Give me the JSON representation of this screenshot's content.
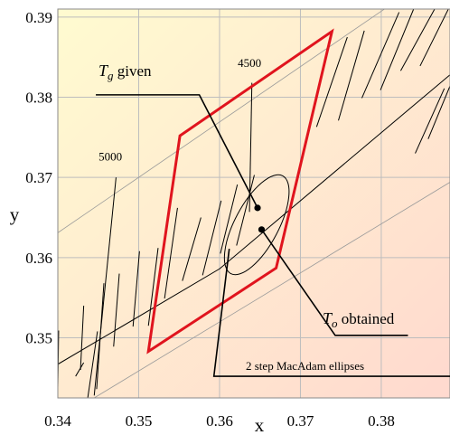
{
  "chart_data": {
    "type": "line",
    "xlabel": "x",
    "ylabel": "y",
    "xlim": [
      0.34,
      0.3885
    ],
    "ylim": [
      0.3425,
      0.391
    ],
    "x_ticks": [
      {
        "value": 0.34,
        "label": "0.34"
      },
      {
        "value": 0.35,
        "label": "0.35"
      },
      {
        "value": 0.36,
        "label": "0.36"
      },
      {
        "value": 0.37,
        "label": "0.37"
      },
      {
        "value": 0.38,
        "label": "0.38"
      }
    ],
    "y_ticks": [
      {
        "value": 0.35,
        "label": "0.35"
      },
      {
        "value": 0.36,
        "label": "0.36"
      },
      {
        "value": 0.37,
        "label": "0.37"
      },
      {
        "value": 0.38,
        "label": "0.38"
      },
      {
        "value": 0.39,
        "label": "0.39"
      }
    ],
    "grid": true,
    "background": {
      "from": "#fffbd0",
      "to": "#ffd9cf"
    },
    "colors": {
      "boundary": "#e0141e",
      "lines": "#000000",
      "grid": "#bdbdbd"
    },
    "locus": [
      [
        0.34,
        0.3467
      ],
      [
        0.36,
        0.3586
      ],
      [
        0.3885,
        0.3828
      ]
    ],
    "boundary_lines": [
      [
        [
          0.34,
          0.3631
        ],
        [
          0.3885,
          0.3966
        ]
      ],
      [
        [
          0.3445,
          0.3425
        ],
        [
          0.3885,
          0.3694
        ]
      ]
    ],
    "isotherms": [
      [
        [
          0.34,
          0.3438
        ],
        [
          0.3401,
          0.3509
        ]
      ],
      [
        [
          0.3428,
          0.346
        ],
        [
          0.3432,
          0.354
        ]
      ],
      [
        [
          0.3448,
          0.3436
        ],
        [
          0.3457,
          0.3568
        ]
      ],
      [
        [
          0.3469,
          0.3489
        ],
        [
          0.3476,
          0.358
        ]
      ],
      [
        [
          0.3493,
          0.3514
        ],
        [
          0.3501,
          0.3608
        ]
      ],
      [
        [
          0.3512,
          0.3515
        ],
        [
          0.3524,
          0.3612
        ]
      ],
      [
        [
          0.3532,
          0.3549
        ],
        [
          0.3548,
          0.3662
        ]
      ],
      [
        [
          0.3554,
          0.3571
        ],
        [
          0.3577,
          0.365
        ]
      ],
      [
        [
          0.3579,
          0.3578
        ],
        [
          0.3602,
          0.3671
        ]
      ],
      [
        [
          0.3601,
          0.3605
        ],
        [
          0.3622,
          0.3691
        ]
      ],
      [
        [
          0.3621,
          0.3615
        ],
        [
          0.3643,
          0.3703
        ]
      ],
      [
        [
          0.372,
          0.3763
        ],
        [
          0.3758,
          0.3875
        ]
      ],
      [
        [
          0.3747,
          0.3771
        ],
        [
          0.3779,
          0.3883
        ]
      ],
      [
        [
          0.3776,
          0.3799
        ],
        [
          0.3822,
          0.3906
        ]
      ],
      [
        [
          0.3799,
          0.3809
        ],
        [
          0.384,
          0.391
        ]
      ],
      [
        [
          0.3824,
          0.3833
        ],
        [
          0.3866,
          0.391
        ]
      ],
      [
        [
          0.3848,
          0.3839
        ],
        [
          0.3883,
          0.391
        ]
      ],
      [
        [
          0.3842,
          0.373
        ],
        [
          0.3878,
          0.3811
        ]
      ],
      [
        [
          0.3858,
          0.3748
        ],
        [
          0.3885,
          0.3814
        ]
      ],
      [
        [
          0.3437,
          0.3425
        ],
        [
          0.3449,
          0.3508
        ]
      ],
      [
        [
          0.3388,
          0.3509
        ],
        [
          0.3388,
          0.3524
        ]
      ],
      [
        [
          0.3422,
          0.3452
        ],
        [
          0.3432,
          0.3469
        ]
      ]
    ],
    "isotherm_labels": [
      {
        "text": "5000",
        "at": [
          0.3465,
          0.3721
        ],
        "line": [
          [
            0.3445,
            0.3428
          ],
          [
            0.3472,
            0.37
          ]
        ]
      },
      {
        "text": "4500",
        "at": [
          0.3637,
          0.3838
        ],
        "line": [
          [
            0.3637,
            0.3657
          ],
          [
            0.364,
            0.3818
          ]
        ]
      }
    ],
    "region": [
      [
        0.3551,
        0.3752
      ],
      [
        0.3739,
        0.3882
      ],
      [
        0.367,
        0.3587
      ],
      [
        0.3512,
        0.3483
      ]
    ],
    "ellipse": {
      "cx": 0.3646,
      "cy": 0.3641,
      "rx": 0.0027,
      "ry": 0.0069,
      "rotate": 28
    },
    "points": [
      {
        "name": "Tg",
        "x": 0.3647,
        "y": 0.3662
      },
      {
        "name": "To",
        "x": 0.3652,
        "y": 0.3635
      }
    ],
    "annotations": [
      {
        "main": "T",
        "sub": "g",
        "rest": " given",
        "anchor": [
          0.3447,
          0.3803
        ],
        "target": [
          0.3647,
          0.3662
        ],
        "elbow": [
          0.3575,
          0.3803
        ]
      },
      {
        "main": "T",
        "sub": "o",
        "rest": " obtained",
        "anchor": [
          0.3833,
          0.3503
        ],
        "target": [
          0.3652,
          0.3635
        ],
        "elbow": [
          0.3743,
          0.3503
        ]
      },
      {
        "text": "2 step MacAdam ellipses",
        "anchor": [
          0.3885,
          0.3452
        ],
        "target": [
          0.3612,
          0.3611
        ],
        "elbow": [
          0.3593,
          0.3452
        ]
      }
    ]
  }
}
